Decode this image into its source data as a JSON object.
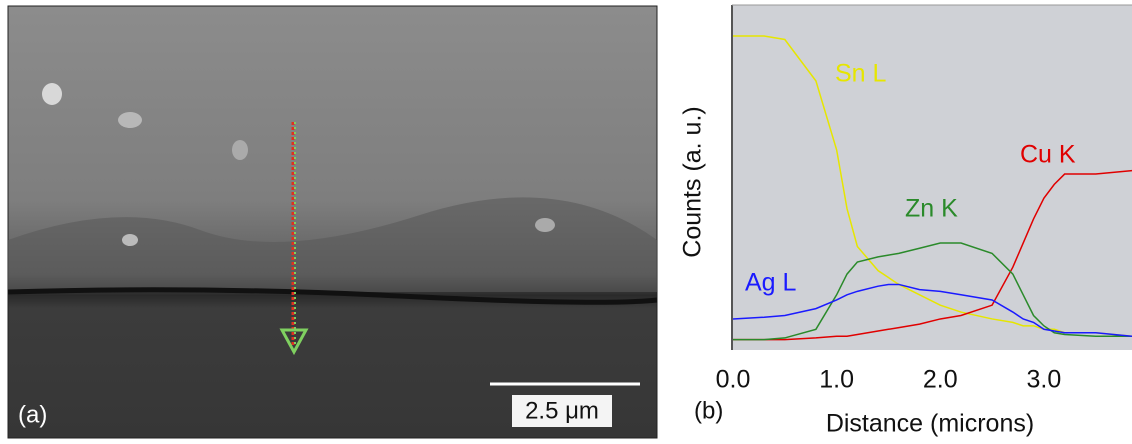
{
  "panel_a": {
    "label": "(a)",
    "scale_bar": "2.5 μm"
  },
  "chart_data": {
    "type": "line",
    "panel_label": "(b)",
    "x_label": "Distance (microns)",
    "y_label": "Counts (a. u.)",
    "x": [
      0,
      0.3,
      0.5,
      0.8,
      1.0,
      1.1,
      1.2,
      1.4,
      1.5,
      1.6,
      1.8,
      2.0,
      2.2,
      2.5,
      2.7,
      2.8,
      2.9,
      3.0,
      3.1,
      3.2,
      3.5,
      3.85
    ],
    "xlim": [
      0,
      3.85
    ],
    "ylim": [
      0,
      100
    ],
    "xticks": [
      {
        "value": 0,
        "label": "0.0"
      },
      {
        "value": 1,
        "label": "1.0"
      },
      {
        "value": 2,
        "label": "2.0"
      },
      {
        "value": 3,
        "label": "3.0"
      }
    ],
    "series": [
      {
        "name": "Sn L",
        "color": "#e6e600",
        "values": [
          91,
          91,
          90,
          78,
          58,
          41,
          30,
          23,
          21,
          19,
          16,
          13,
          11,
          9,
          8,
          7,
          7,
          6,
          6,
          5,
          5,
          4
        ]
      },
      {
        "name": "Cu K",
        "color": "#e00000",
        "values": [
          3,
          3,
          3,
          3.5,
          4,
          4,
          4.5,
          5.5,
          6,
          6.5,
          7.5,
          9,
          10,
          13,
          24,
          31,
          38,
          44,
          48,
          51,
          51,
          52
        ]
      },
      {
        "name": "Zn K",
        "color": "#2a8a2a",
        "values": [
          3,
          3,
          3.5,
          6,
          16,
          22,
          25.5,
          27,
          27.5,
          28,
          29.5,
          31,
          31,
          28,
          22,
          16,
          10,
          7,
          5,
          4.5,
          4,
          4
        ]
      },
      {
        "name": "Ag L",
        "color": "#1a1aff",
        "values": [
          9,
          9.5,
          10,
          12,
          14.5,
          16,
          17,
          18.5,
          19,
          19,
          17.5,
          17,
          16,
          14.5,
          11,
          9,
          8,
          6,
          5.5,
          5,
          5,
          4
        ]
      }
    ]
  }
}
